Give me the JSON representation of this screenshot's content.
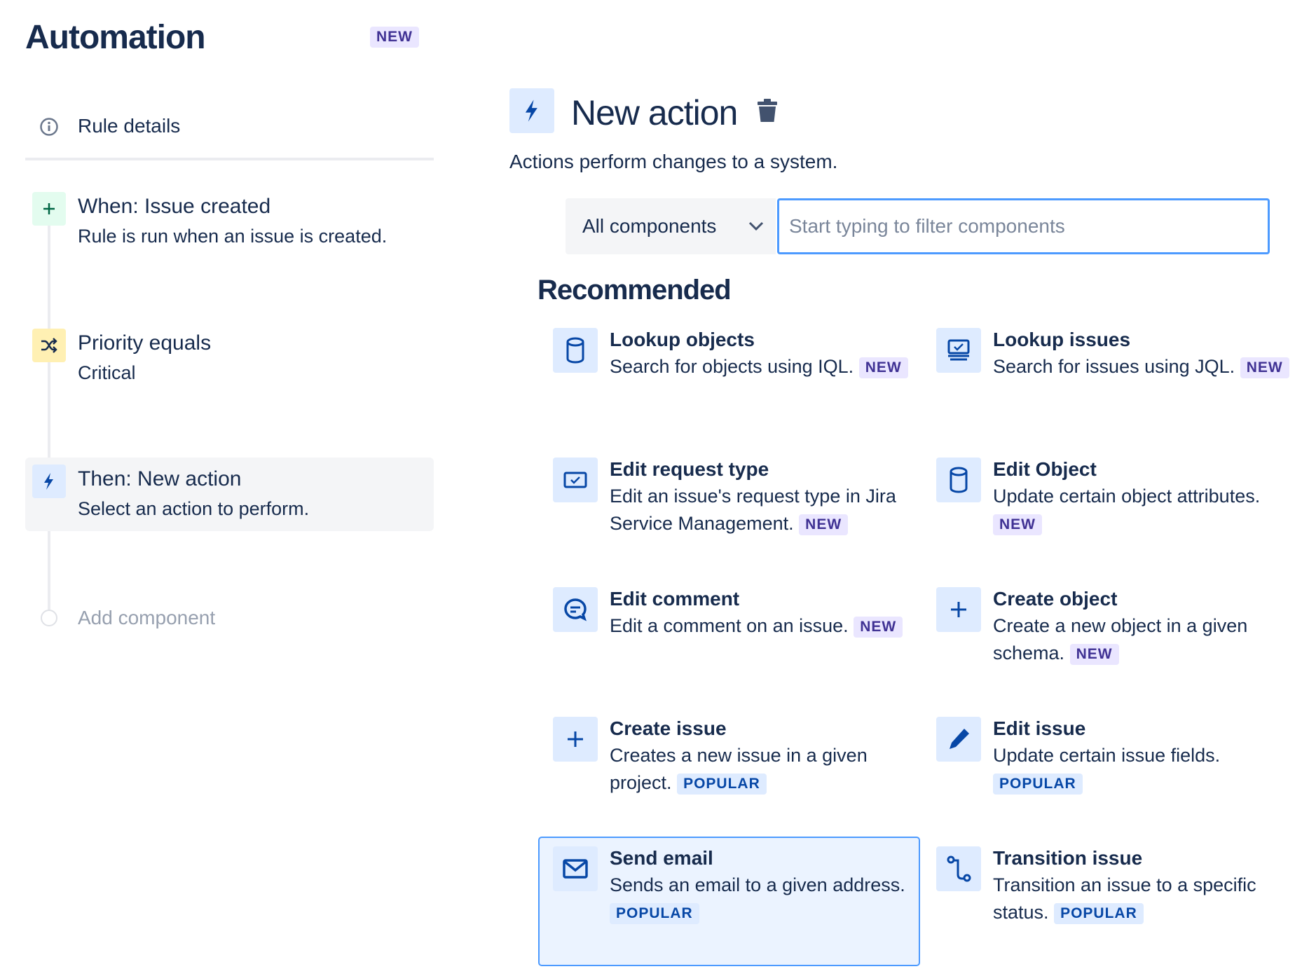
{
  "sidebar": {
    "title": "Automation",
    "title_badge": "NEW",
    "rule_details": "Rule details",
    "steps": [
      {
        "title": "When: Issue created",
        "desc": "Rule is run when an issue is created.",
        "icon": "plus-icon"
      },
      {
        "title": "Priority equals",
        "desc": "Critical",
        "icon": "shuffle-icon"
      },
      {
        "title": "Then: New action",
        "desc": "Select an action to perform.",
        "icon": "lightning-icon"
      }
    ],
    "add_component": "Add component"
  },
  "main": {
    "title": "New action",
    "subtitle": "Actions perform changes to a system.",
    "filter_select": "All components",
    "filter_placeholder": "Start typing to filter components",
    "section_title": "Recommended",
    "items": [
      {
        "title": "Lookup objects",
        "desc": "Search for objects using IQL.",
        "badge": "NEW",
        "icon": "database-icon"
      },
      {
        "title": "Lookup issues",
        "desc": "Search for issues using JQL.",
        "badge": "NEW",
        "icon": "monitor-check-icon"
      },
      {
        "title": "Edit request type",
        "desc": "Edit an issue's request type in Jira Service Management.",
        "badge": "NEW",
        "icon": "checkbox-icon"
      },
      {
        "title": "Edit Object",
        "desc": "Update certain object attributes.",
        "badge": "NEW",
        "icon": "database-icon"
      },
      {
        "title": "Edit comment",
        "desc": "Edit a comment on an issue.",
        "badge": "NEW",
        "icon": "comment-icon"
      },
      {
        "title": "Create object",
        "desc": "Create a new object in a given schema.",
        "badge": "NEW",
        "icon": "plus-icon"
      },
      {
        "title": "Create issue",
        "desc": "Creates a new issue in a given project.",
        "badge": "POPULAR",
        "icon": "plus-icon"
      },
      {
        "title": "Edit issue",
        "desc": "Update certain issue fields.",
        "badge": "POPULAR",
        "icon": "pencil-icon"
      },
      {
        "title": "Send email",
        "desc": "Sends an email to a given address.",
        "badge": "POPULAR",
        "icon": "email-icon",
        "selected": true
      },
      {
        "title": "Transition issue",
        "desc": "Transition an issue to a specific status.",
        "badge": "POPULAR",
        "icon": "transition-icon"
      }
    ]
  },
  "colors": {
    "text": "#172b4d",
    "accent": "#4c9aff",
    "icon": "#0747a6",
    "new_badge_bg": "#eae6ff",
    "popular_badge_bg": "#deebff"
  }
}
